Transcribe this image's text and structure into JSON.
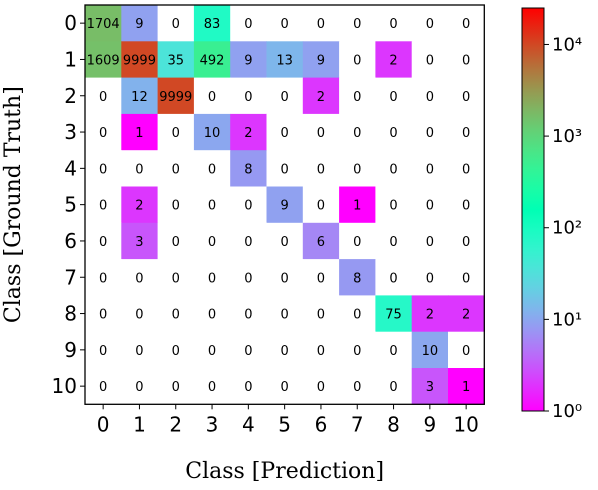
{
  "chart_data": {
    "type": "heatmap",
    "title": "",
    "xlabel": "Class [Prediction]",
    "ylabel": "Class [Ground Truth]",
    "x_categories": [
      "0",
      "1",
      "2",
      "3",
      "4",
      "5",
      "6",
      "7",
      "8",
      "9",
      "10"
    ],
    "y_categories": [
      "0",
      "1",
      "2",
      "3",
      "4",
      "5",
      "6",
      "7",
      "8",
      "9",
      "10"
    ],
    "matrix": [
      [
        1704,
        9,
        0,
        83,
        0,
        0,
        0,
        0,
        0,
        0,
        0
      ],
      [
        1609,
        9999,
        35,
        492,
        9,
        13,
        9,
        0,
        2,
        0,
        0
      ],
      [
        0,
        12,
        9999,
        0,
        0,
        0,
        2,
        0,
        0,
        0,
        0
      ],
      [
        0,
        1,
        0,
        10,
        2,
        0,
        0,
        0,
        0,
        0,
        0
      ],
      [
        0,
        0,
        0,
        0,
        8,
        0,
        0,
        0,
        0,
        0,
        0
      ],
      [
        0,
        2,
        0,
        0,
        0,
        9,
        0,
        1,
        0,
        0,
        0
      ],
      [
        0,
        3,
        0,
        0,
        0,
        0,
        6,
        0,
        0,
        0,
        0
      ],
      [
        0,
        0,
        0,
        0,
        0,
        0,
        0,
        8,
        0,
        0,
        0
      ],
      [
        0,
        0,
        0,
        0,
        0,
        0,
        0,
        0,
        75,
        2,
        2
      ],
      [
        0,
        0,
        0,
        0,
        0,
        0,
        0,
        0,
        0,
        10,
        0
      ],
      [
        0,
        0,
        0,
        0,
        0,
        0,
        0,
        0,
        0,
        3,
        1
      ]
    ],
    "color_scale": "log",
    "colormap": "rainbow",
    "zero_color": "#ffffff",
    "colorbar": {
      "range": [
        1,
        25000
      ],
      "ticks": [
        1,
        10,
        100,
        1000,
        10000
      ],
      "tick_labels": [
        "10⁰",
        "10¹",
        "10²",
        "10³",
        "10⁴"
      ]
    },
    "grid": false,
    "legend": "none"
  }
}
